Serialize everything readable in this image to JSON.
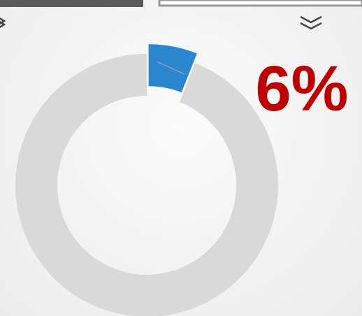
{
  "chart_data": {
    "type": "pie",
    "values": [
      6,
      94
    ],
    "value_labels": [
      "6%",
      null
    ],
    "colors": [
      "#2a86cf",
      "#d9d9d9"
    ],
    "label_color": "#c00000"
  }
}
